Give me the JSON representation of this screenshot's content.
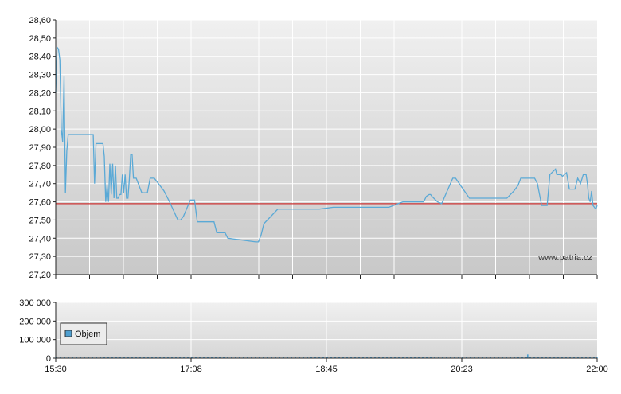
{
  "chart_data": [
    {
      "type": "line",
      "title": "",
      "xlabel": "",
      "ylabel": "",
      "ylim": [
        27.2,
        28.6
      ],
      "y_ticks": [
        "28,60",
        "28,50",
        "28,40",
        "28,30",
        "28,20",
        "28,10",
        "28,00",
        "27,90",
        "27,80",
        "27,70",
        "27,60",
        "27,50",
        "27,40",
        "27,30",
        "27,20"
      ],
      "x_ticks": [
        "15:30",
        "17:08",
        "18:45",
        "20:23",
        "22:00"
      ],
      "x_range": [
        "15:30",
        "22:00"
      ],
      "grid": true,
      "reference_line": {
        "value": 27.59,
        "color": "#cc3333"
      },
      "watermark": "www.patria.cz",
      "line_color": "#5aa9d6",
      "x": [
        "15:30",
        "15:31",
        "15:32",
        "15:33",
        "15:34",
        "15:35",
        "15:36",
        "15:37",
        "15:38",
        "15:39",
        "15:40",
        "15:41",
        "15:42",
        "15:43",
        "15:50",
        "15:57",
        "15:58",
        "15:59",
        "16:04",
        "16:05",
        "16:06",
        "16:07",
        "16:08",
        "16:09",
        "16:10",
        "16:11",
        "16:12",
        "16:13",
        "16:14",
        "16:15",
        "16:16",
        "16:17",
        "16:18",
        "16:19",
        "16:20",
        "16:21",
        "16:22",
        "16:23",
        "16:24",
        "16:25",
        "16:26",
        "16:28",
        "16:32",
        "16:34",
        "16:36",
        "16:38",
        "16:41",
        "16:48",
        "16:52",
        "16:58",
        "17:00",
        "17:02",
        "17:07",
        "17:09",
        "17:10",
        "17:12",
        "17:24",
        "17:26",
        "17:32",
        "17:34",
        "17:54",
        "17:56",
        "17:58",
        "18:00",
        "18:10",
        "18:15",
        "18:38",
        "18:40",
        "18:50",
        "19:00",
        "19:30",
        "19:40",
        "19:43",
        "19:48",
        "19:55",
        "19:57",
        "19:59",
        "20:00",
        "20:01",
        "20:05",
        "20:08",
        "20:16",
        "20:18",
        "20:28",
        "20:30",
        "20:34",
        "20:55",
        "21:00",
        "21:03",
        "21:05",
        "21:10",
        "21:15",
        "21:17",
        "21:20",
        "21:24",
        "21:26",
        "21:30",
        "21:31",
        "21:32",
        "21:34",
        "21:35",
        "21:38",
        "21:40",
        "21:44",
        "21:46",
        "21:48",
        "21:50",
        "21:52",
        "21:53",
        "21:54",
        "21:55",
        "21:56",
        "21:57",
        "21:58",
        "21:59",
        "22:00"
      ],
      "series": [
        {
          "name": "",
          "values": [
            28.2,
            28.45,
            28.44,
            28.38,
            28.0,
            27.93,
            28.29,
            27.65,
            27.88,
            27.97,
            27.97,
            27.97,
            27.97,
            27.97,
            27.97,
            27.97,
            27.7,
            27.92,
            27.92,
            27.85,
            27.6,
            27.69,
            27.6,
            27.81,
            27.64,
            27.81,
            27.62,
            27.8,
            27.62,
            27.62,
            27.64,
            27.64,
            27.75,
            27.65,
            27.75,
            27.62,
            27.62,
            27.72,
            27.86,
            27.86,
            27.73,
            27.73,
            27.65,
            27.65,
            27.65,
            27.73,
            27.73,
            27.66,
            27.6,
            27.5,
            27.5,
            27.52,
            27.61,
            27.61,
            27.61,
            27.49,
            27.49,
            27.43,
            27.43,
            27.4,
            27.38,
            27.38,
            27.42,
            27.48,
            27.56,
            27.56,
            27.56,
            27.56,
            27.57,
            27.57,
            27.57,
            27.6,
            27.6,
            27.6,
            27.6,
            27.63,
            27.64,
            27.64,
            27.63,
            27.6,
            27.59,
            27.73,
            27.73,
            27.62,
            27.62,
            27.62,
            27.62,
            27.66,
            27.69,
            27.73,
            27.73,
            27.73,
            27.7,
            27.58,
            27.58,
            27.75,
            27.78,
            27.75,
            27.75,
            27.75,
            27.74,
            27.76,
            27.67,
            27.67,
            27.73,
            27.7,
            27.75,
            27.75,
            27.7,
            27.62,
            27.6,
            27.66,
            27.58,
            27.57,
            27.56,
            27.58
          ]
        }
      ]
    },
    {
      "type": "bar",
      "title": "",
      "xlabel": "",
      "ylabel": "",
      "ylim": [
        0,
        300000
      ],
      "y_ticks": [
        "300 000",
        "200 000",
        "100 000",
        "0"
      ],
      "x_ticks": [
        "15:30",
        "17:08",
        "18:45",
        "20:23",
        "22:00"
      ],
      "x_range": [
        "15:30",
        "22:00"
      ],
      "grid": true,
      "legend": {
        "position": "left",
        "entries": [
          "Objem"
        ]
      },
      "bar_color": "#4e9fd0",
      "x": [
        "15:30",
        "15:45",
        "16:00",
        "16:15",
        "16:30",
        "16:45",
        "17:00",
        "17:10",
        "17:25",
        "17:40",
        "18:00",
        "18:20",
        "18:40",
        "19:00",
        "19:20",
        "19:40",
        "20:00",
        "20:15",
        "20:30",
        "20:45",
        "21:00",
        "21:10",
        "21:15",
        "21:30",
        "21:45",
        "21:55",
        "22:00"
      ],
      "series": [
        {
          "name": "Objem",
          "values": [
            3000,
            2500,
            2000,
            2500,
            3000,
            2000,
            2500,
            1500,
            1500,
            2000,
            1500,
            1500,
            2000,
            1500,
            1500,
            1500,
            3000,
            2000,
            2500,
            2000,
            2500,
            20000,
            3000,
            2500,
            2000,
            3000,
            4000
          ]
        }
      ]
    }
  ]
}
